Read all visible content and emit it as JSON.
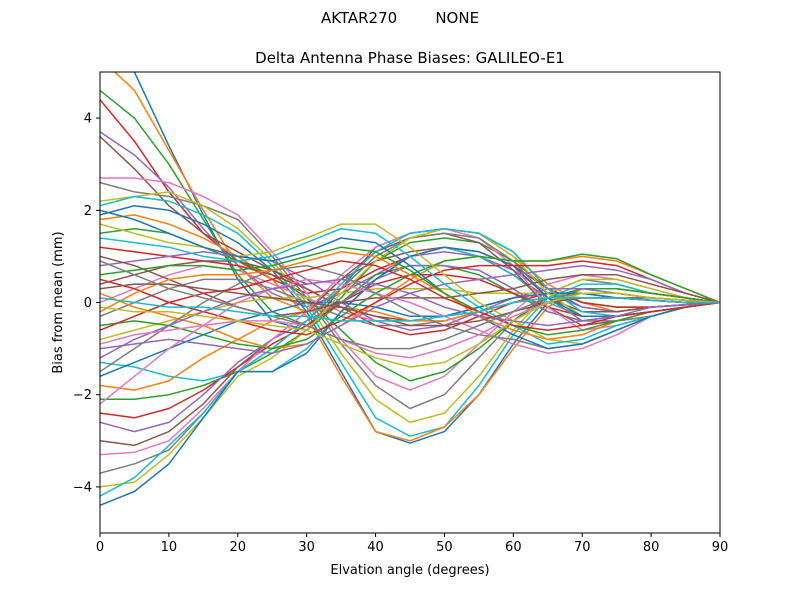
{
  "suptitle": "AKTAR270        NONE",
  "chart_data": {
    "type": "line",
    "title": "Delta Antenna Phase Biases: GALILEO-E1",
    "xlabel": "Elvation angle (degrees)",
    "ylabel": "Bias from mean (mm)",
    "xlim": [
      0,
      90
    ],
    "ylim": [
      -5,
      5
    ],
    "x_ticks": [
      0,
      10,
      20,
      30,
      40,
      50,
      60,
      70,
      80,
      90
    ],
    "y_ticks": [
      -4,
      -2,
      0,
      2,
      4
    ],
    "grid": false,
    "legend": "none",
    "x": [
      0,
      5,
      10,
      15,
      20,
      25,
      30,
      35,
      40,
      45,
      50,
      55,
      60,
      65,
      70,
      75,
      80,
      85,
      90
    ],
    "series_note": "many overlaid unlabeled series",
    "series": [
      {
        "values": [
          5.6,
          5.0,
          3.4,
          1.9,
          0.5,
          -0.4,
          -0.6,
          0.3,
          1.2,
          1.5,
          1.6,
          1.5,
          1.1,
          0.3,
          -0.1,
          -0.2,
          -0.1,
          -0.05,
          0
        ]
      },
      {
        "values": [
          5.3,
          4.6,
          3.3,
          2.0,
          0.8,
          0.1,
          -0.2,
          0.3,
          1.0,
          1.4,
          1.6,
          1.5,
          1.0,
          0.4,
          0.0,
          -0.2,
          -0.1,
          -0.05,
          0
        ]
      },
      {
        "values": [
          4.6,
          4.0,
          3.0,
          1.8,
          0.6,
          -0.2,
          -0.5,
          0.1,
          0.9,
          1.3,
          1.4,
          1.3,
          0.9,
          0.3,
          0.0,
          -0.1,
          -0.1,
          -0.05,
          0
        ]
      },
      {
        "values": [
          4.4,
          3.5,
          2.4,
          1.5,
          0.9,
          0.5,
          0.2,
          0.3,
          0.7,
          1.0,
          1.2,
          1.1,
          0.8,
          0.3,
          0.0,
          -0.1,
          -0.1,
          -0.05,
          0
        ]
      },
      {
        "values": [
          3.7,
          3.2,
          2.5,
          1.6,
          0.8,
          0.2,
          -0.1,
          0.2,
          0.6,
          1.0,
          1.1,
          1.0,
          0.7,
          0.2,
          -0.1,
          -0.2,
          -0.1,
          -0.05,
          0
        ]
      },
      {
        "values": [
          3.6,
          2.9,
          2.1,
          1.5,
          1.1,
          0.7,
          0.4,
          0.5,
          0.9,
          1.1,
          1.2,
          1.0,
          0.6,
          0.1,
          -0.2,
          -0.2,
          -0.1,
          -0.05,
          0
        ]
      },
      {
        "values": [
          2.7,
          2.7,
          2.6,
          2.3,
          1.9,
          1.1,
          0.2,
          -0.8,
          -1.6,
          -1.9,
          -1.6,
          -0.9,
          -0.2,
          0.4,
          0.6,
          0.5,
          0.3,
          0.1,
          0
        ]
      },
      {
        "values": [
          2.6,
          2.4,
          2.3,
          2.1,
          1.8,
          1.0,
          0.1,
          -0.9,
          -1.8,
          -2.3,
          -2.0,
          -1.2,
          -0.4,
          0.2,
          0.5,
          0.4,
          0.2,
          0.1,
          0
        ]
      },
      {
        "values": [
          2.2,
          2.3,
          2.4,
          2.1,
          1.6,
          0.9,
          0.0,
          -1.1,
          -2.1,
          -2.6,
          -2.4,
          -1.6,
          -0.6,
          0.2,
          0.5,
          0.5,
          0.3,
          0.1,
          0
        ]
      },
      {
        "values": [
          2.1,
          2.3,
          2.2,
          1.9,
          1.5,
          0.8,
          -0.1,
          -1.3,
          -2.5,
          -2.9,
          -2.7,
          -1.8,
          -0.7,
          0.1,
          0.4,
          0.4,
          0.2,
          0.1,
          0
        ]
      },
      {
        "values": [
          1.9,
          2.1,
          2.0,
          1.7,
          1.3,
          0.7,
          -0.2,
          -1.5,
          -2.8,
          -3.05,
          -2.8,
          -2.0,
          -0.9,
          0.0,
          0.3,
          0.3,
          0.2,
          0.1,
          0
        ]
      },
      {
        "values": [
          1.8,
          1.9,
          1.7,
          1.4,
          1.0,
          0.5,
          -0.3,
          -1.6,
          -2.8,
          -3.0,
          -2.7,
          -2.0,
          -1.0,
          -0.1,
          0.3,
          0.3,
          0.2,
          0.1,
          0
        ]
      },
      {
        "values": [
          1.5,
          1.6,
          1.5,
          1.2,
          0.9,
          0.6,
          0.1,
          -0.6,
          -1.3,
          -1.7,
          -1.5,
          -1.0,
          -0.4,
          0.1,
          0.3,
          0.3,
          0.2,
          0.1,
          0
        ]
      },
      {
        "values": [
          1.2,
          1.1,
          1.0,
          0.9,
          0.8,
          0.6,
          0.3,
          -0.1,
          -0.5,
          -0.7,
          -0.6,
          -0.3,
          0.0,
          0.2,
          0.2,
          0.2,
          0.1,
          0.05,
          0
        ]
      },
      {
        "values": [
          0.8,
          0.9,
          1.0,
          1.1,
          1.0,
          0.9,
          0.5,
          0.0,
          -0.4,
          -0.6,
          -0.5,
          -0.2,
          0.1,
          0.3,
          0.3,
          0.2,
          0.1,
          0.05,
          0
        ]
      },
      {
        "values": [
          0.4,
          0.6,
          0.8,
          0.9,
          0.9,
          0.7,
          0.3,
          -0.1,
          -0.3,
          -0.4,
          -0.3,
          -0.1,
          0.1,
          0.2,
          0.2,
          0.1,
          0.1,
          0.05,
          0
        ]
      },
      {
        "values": [
          0.0,
          0.3,
          0.6,
          0.8,
          0.7,
          0.4,
          0.1,
          -0.2,
          -0.4,
          -0.4,
          -0.3,
          -0.1,
          0.1,
          0.2,
          0.2,
          0.1,
          0.05,
          0.0,
          0
        ]
      },
      {
        "values": [
          -0.3,
          0.0,
          0.3,
          0.5,
          0.5,
          0.3,
          0.0,
          -0.3,
          -0.5,
          -0.5,
          -0.4,
          -0.2,
          0.0,
          0.1,
          0.1,
          0.1,
          0.05,
          0.0,
          0
        ]
      },
      {
        "values": [
          -0.8,
          -0.6,
          -0.4,
          -0.2,
          0.0,
          0.1,
          0.1,
          0.2,
          0.3,
          0.3,
          0.3,
          0.2,
          0.2,
          0.2,
          0.1,
          0.1,
          0.05,
          0.0,
          0
        ]
      },
      {
        "values": [
          -1.3,
          -1.4,
          -1.6,
          -1.7,
          -1.5,
          -1.5,
          -1.0,
          -0.2,
          0.5,
          1.0,
          1.2,
          1.0,
          0.6,
          0.0,
          -0.3,
          -0.3,
          -0.2,
          -0.1,
          0
        ]
      },
      {
        "values": [
          -1.6,
          -1.3,
          -1.0,
          -0.7,
          -0.4,
          -0.2,
          0.0,
          0.0,
          -0.1,
          -0.3,
          -0.3,
          -0.1,
          0.1,
          0.2,
          0.2,
          0.1,
          0.05,
          0.0,
          0
        ]
      },
      {
        "values": [
          -1.8,
          -1.9,
          -1.7,
          -1.2,
          -0.8,
          -0.4,
          -0.2,
          -0.1,
          -0.2,
          -0.4,
          -0.4,
          -0.2,
          0.0,
          0.1,
          0.1,
          0.1,
          0.05,
          0.0,
          0
        ]
      },
      {
        "values": [
          -2.1,
          -2.1,
          -2.0,
          -1.8,
          -1.5,
          -1.1,
          -0.6,
          0.0,
          0.6,
          0.8,
          0.8,
          0.6,
          0.2,
          -0.2,
          -0.4,
          -0.3,
          -0.2,
          -0.1,
          0
        ]
      },
      {
        "values": [
          -2.4,
          -2.5,
          -2.3,
          -1.9,
          -1.4,
          -0.9,
          -0.5,
          0.0,
          0.4,
          0.6,
          0.6,
          0.5,
          0.2,
          -0.1,
          -0.3,
          -0.3,
          -0.2,
          -0.1,
          0
        ]
      },
      {
        "values": [
          -2.6,
          -2.8,
          -2.6,
          -2.0,
          -1.3,
          -0.8,
          -0.4,
          0.0,
          0.5,
          0.8,
          0.8,
          0.7,
          0.3,
          -0.2,
          -0.4,
          -0.3,
          -0.2,
          -0.1,
          0
        ]
      },
      {
        "values": [
          -3.0,
          -3.1,
          -2.8,
          -2.2,
          -1.4,
          -0.8,
          -0.2,
          0.5,
          1.1,
          1.4,
          1.5,
          1.3,
          0.7,
          -0.1,
          -0.5,
          -0.4,
          -0.3,
          -0.1,
          0
        ]
      },
      {
        "values": [
          -3.3,
          -3.25,
          -3.0,
          -2.3,
          -1.5,
          -0.8,
          -0.2,
          0.6,
          1.2,
          1.5,
          1.6,
          1.4,
          0.8,
          -0.1,
          -0.6,
          -0.5,
          -0.3,
          -0.1,
          0
        ]
      },
      {
        "values": [
          -3.7,
          -3.5,
          -3.2,
          -2.4,
          -1.5,
          -1.0,
          -0.4,
          0.3,
          1.0,
          1.4,
          1.5,
          1.4,
          0.9,
          0.1,
          -0.4,
          -0.4,
          -0.3,
          -0.1,
          0
        ]
      },
      {
        "values": [
          -4.0,
          -3.9,
          -3.3,
          -2.5,
          -1.6,
          -1.2,
          -0.6,
          0.2,
          0.9,
          1.4,
          1.6,
          1.5,
          1.0,
          0.2,
          -0.3,
          -0.3,
          -0.2,
          -0.1,
          0
        ]
      },
      {
        "values": [
          -4.2,
          -3.8,
          -3.1,
          -2.4,
          -1.5,
          -1.0,
          -0.4,
          0.4,
          1.1,
          1.5,
          1.6,
          1.5,
          1.1,
          0.3,
          -0.2,
          -0.3,
          -0.2,
          -0.1,
          0
        ]
      },
      {
        "values": [
          -4.4,
          -4.1,
          -3.5,
          -2.5,
          -1.5,
          -1.5,
          -1.1,
          -0.2,
          0.5,
          1.0,
          1.2,
          1.1,
          0.8,
          0.1,
          -0.3,
          -0.3,
          -0.2,
          -0.1,
          0
        ]
      },
      {
        "values": [
          0.2,
          -0.1,
          -0.3,
          -0.5,
          -0.8,
          -1.0,
          -0.9,
          -0.5,
          0.0,
          0.5,
          0.9,
          1.0,
          0.9,
          0.9,
          1.0,
          0.9,
          0.6,
          0.3,
          0
        ]
      },
      {
        "values": [
          -0.5,
          -0.4,
          -0.5,
          -0.7,
          -0.9,
          -1.0,
          -0.8,
          -0.3,
          0.2,
          0.6,
          0.9,
          1.0,
          0.9,
          0.9,
          1.05,
          0.95,
          0.6,
          0.3,
          0
        ]
      },
      {
        "values": [
          0.5,
          0.3,
          0.0,
          -0.2,
          -0.4,
          -0.6,
          -0.7,
          -0.4,
          0.0,
          0.4,
          0.7,
          0.8,
          0.8,
          0.8,
          0.9,
          0.8,
          0.5,
          0.2,
          0
        ]
      },
      {
        "values": [
          -1.0,
          -0.9,
          -0.8,
          -0.9,
          -1.0,
          -1.1,
          -0.9,
          -0.5,
          -0.1,
          0.2,
          0.4,
          0.5,
          0.6,
          0.7,
          0.8,
          0.7,
          0.5,
          0.2,
          0
        ]
      },
      {
        "values": [
          1.0,
          0.8,
          0.5,
          0.2,
          -0.1,
          -0.3,
          -0.2,
          0.0,
          0.1,
          0.1,
          0.1,
          0.2,
          0.3,
          0.5,
          0.6,
          0.6,
          0.4,
          0.2,
          0
        ]
      },
      {
        "values": [
          -2.2,
          -1.6,
          -1.0,
          -0.5,
          0.0,
          0.3,
          0.5,
          0.4,
          0.2,
          0.0,
          -0.3,
          -0.6,
          -0.9,
          -1.1,
          -1.0,
          -0.7,
          -0.3,
          -0.1,
          0
        ]
      },
      {
        "values": [
          -1.5,
          -1.0,
          -0.5,
          0.0,
          0.4,
          0.7,
          0.8,
          0.6,
          0.2,
          -0.2,
          -0.5,
          -0.7,
          -0.8,
          -1.0,
          -0.9,
          -0.6,
          -0.3,
          -0.1,
          0
        ]
      },
      {
        "values": [
          1.7,
          1.5,
          1.3,
          1.2,
          1.0,
          1.1,
          1.4,
          1.7,
          1.7,
          1.2,
          0.6,
          0.0,
          -0.4,
          -0.8,
          -0.9,
          -0.6,
          -0.3,
          -0.1,
          0
        ]
      },
      {
        "values": [
          1.4,
          1.3,
          1.2,
          1.0,
          0.9,
          1.0,
          1.3,
          1.6,
          1.5,
          1.0,
          0.4,
          -0.1,
          -0.5,
          -0.9,
          -0.8,
          -0.5,
          -0.3,
          -0.1,
          0
        ]
      },
      {
        "values": [
          2.0,
          1.8,
          1.5,
          1.2,
          1.0,
          0.9,
          1.1,
          1.4,
          1.3,
          0.8,
          0.2,
          -0.3,
          -0.7,
          -1.0,
          -0.9,
          -0.6,
          -0.3,
          -0.1,
          0
        ]
      },
      {
        "values": [
          -0.2,
          0.2,
          0.5,
          0.6,
          0.6,
          0.7,
          0.9,
          1.1,
          1.0,
          0.6,
          0.2,
          -0.3,
          -0.6,
          -0.8,
          -0.7,
          -0.4,
          -0.2,
          -0.1,
          0
        ]
      },
      {
        "values": [
          0.6,
          0.7,
          0.8,
          0.8,
          0.7,
          0.8,
          1.0,
          1.2,
          1.1,
          0.7,
          0.2,
          -0.2,
          -0.5,
          -0.7,
          -0.6,
          -0.4,
          -0.2,
          -0.1,
          0
        ]
      },
      {
        "values": [
          -0.6,
          -0.3,
          0.0,
          0.2,
          0.3,
          0.5,
          0.7,
          0.9,
          0.8,
          0.5,
          0.1,
          -0.2,
          -0.5,
          -0.6,
          -0.5,
          -0.3,
          -0.2,
          -0.1,
          0
        ]
      },
      {
        "values": [
          -1.2,
          -0.8,
          -0.5,
          -0.2,
          0.1,
          0.3,
          0.4,
          0.5,
          0.4,
          0.2,
          -0.1,
          -0.3,
          -0.4,
          -0.5,
          -0.4,
          -0.3,
          -0.1,
          -0.05,
          0
        ]
      },
      {
        "values": [
          0.3,
          0.4,
          0.4,
          0.3,
          0.2,
          0.1,
          0.0,
          -0.1,
          -0.3,
          -0.5,
          -0.5,
          -0.4,
          -0.2,
          0.0,
          0.1,
          0.1,
          0.05,
          0.0,
          0
        ]
      },
      {
        "values": [
          -0.9,
          -0.7,
          -0.6,
          -0.5,
          -0.4,
          -0.4,
          -0.5,
          -0.8,
          -1.1,
          -1.2,
          -1.0,
          -0.7,
          -0.3,
          0.0,
          0.2,
          0.2,
          0.1,
          0.05,
          0
        ]
      },
      {
        "values": [
          0.9,
          0.6,
          0.3,
          0.1,
          -0.1,
          -0.3,
          -0.5,
          -0.8,
          -1.0,
          -1.0,
          -0.8,
          -0.5,
          -0.2,
          0.1,
          0.2,
          0.2,
          0.1,
          0.05,
          0
        ]
      },
      {
        "values": [
          -0.1,
          -0.2,
          -0.2,
          -0.3,
          -0.4,
          -0.5,
          -0.6,
          -0.9,
          -1.2,
          -1.4,
          -1.3,
          -0.9,
          -0.4,
          0.0,
          0.2,
          0.2,
          0.1,
          0.05,
          0
        ]
      },
      {
        "values": [
          0.1,
          0.0,
          -0.1,
          -0.1,
          -0.2,
          -0.3,
          -0.3,
          -0.4,
          -0.4,
          -0.4,
          -0.3,
          -0.2,
          0.0,
          0.1,
          0.1,
          0.1,
          0.05,
          0.0,
          0
        ]
      }
    ]
  }
}
